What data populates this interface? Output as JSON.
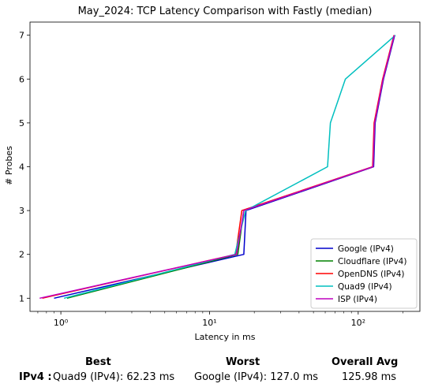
{
  "chart_data": {
    "type": "line",
    "title": "May_2024: TCP Latency Comparison with Fastly (median)",
    "xlabel": "Latency in ms",
    "ylabel": "# Probes",
    "xscale": "log",
    "xlim": [
      0.62,
      260
    ],
    "ylim": [
      0.7,
      7.3
    ],
    "x_ticks": [
      1,
      10,
      100
    ],
    "x_tick_labels": [
      "10⁰",
      "10¹",
      "10²"
    ],
    "y_ticks": [
      1,
      2,
      3,
      4,
      5,
      6,
      7
    ],
    "y_tick_labels": [
      "1",
      "2",
      "3",
      "4",
      "5",
      "6",
      "7"
    ],
    "grid": false,
    "legend_position": "lower-right",
    "series": [
      {
        "name": "Google (IPv4)",
        "color": "#0000cc",
        "x": [
          0.9,
          17.0,
          17.6,
          127.0,
          130.0,
          148.0,
          176.0
        ],
        "y": [
          1,
          2,
          3,
          4,
          5,
          6,
          7
        ]
      },
      {
        "name": "Cloudflare (IPv4)",
        "color": "#008000",
        "x": [
          1.1,
          15.5,
          17.0,
          126.0,
          129.0,
          147.0,
          175.0
        ],
        "y": [
          1,
          2,
          3,
          4,
          5,
          6,
          7
        ]
      },
      {
        "name": "OpenDNS (IPv4)",
        "color": "#ff0000",
        "x": [
          0.75,
          15.0,
          16.5,
          125.0,
          128.0,
          146.0,
          174.0
        ],
        "y": [
          1,
          2,
          3,
          4,
          5,
          6,
          7
        ]
      },
      {
        "name": "Quad9 (IPv4)",
        "color": "#00bfbf",
        "x": [
          1.05,
          14.8,
          17.5,
          62.23,
          65.0,
          82.0,
          178.0
        ],
        "y": [
          1,
          2,
          3,
          4,
          5,
          6,
          7
        ]
      },
      {
        "name": "ISP (IPv4)",
        "color": "#bf00bf",
        "x": [
          0.72,
          15.2,
          17.0,
          126.0,
          129.0,
          147.0,
          175.0
        ],
        "y": [
          1,
          2,
          3,
          4,
          5,
          6,
          7
        ]
      }
    ]
  },
  "summary": {
    "headers": {
      "best": "Best",
      "worst": "Worst",
      "overall": "Overall Avg"
    },
    "row_label": "IPv4 :",
    "best_value": "Quad9 (IPv4): 62.23 ms",
    "worst_value": "Google (IPv4): 127.0 ms",
    "overall_value": "125.98 ms"
  }
}
